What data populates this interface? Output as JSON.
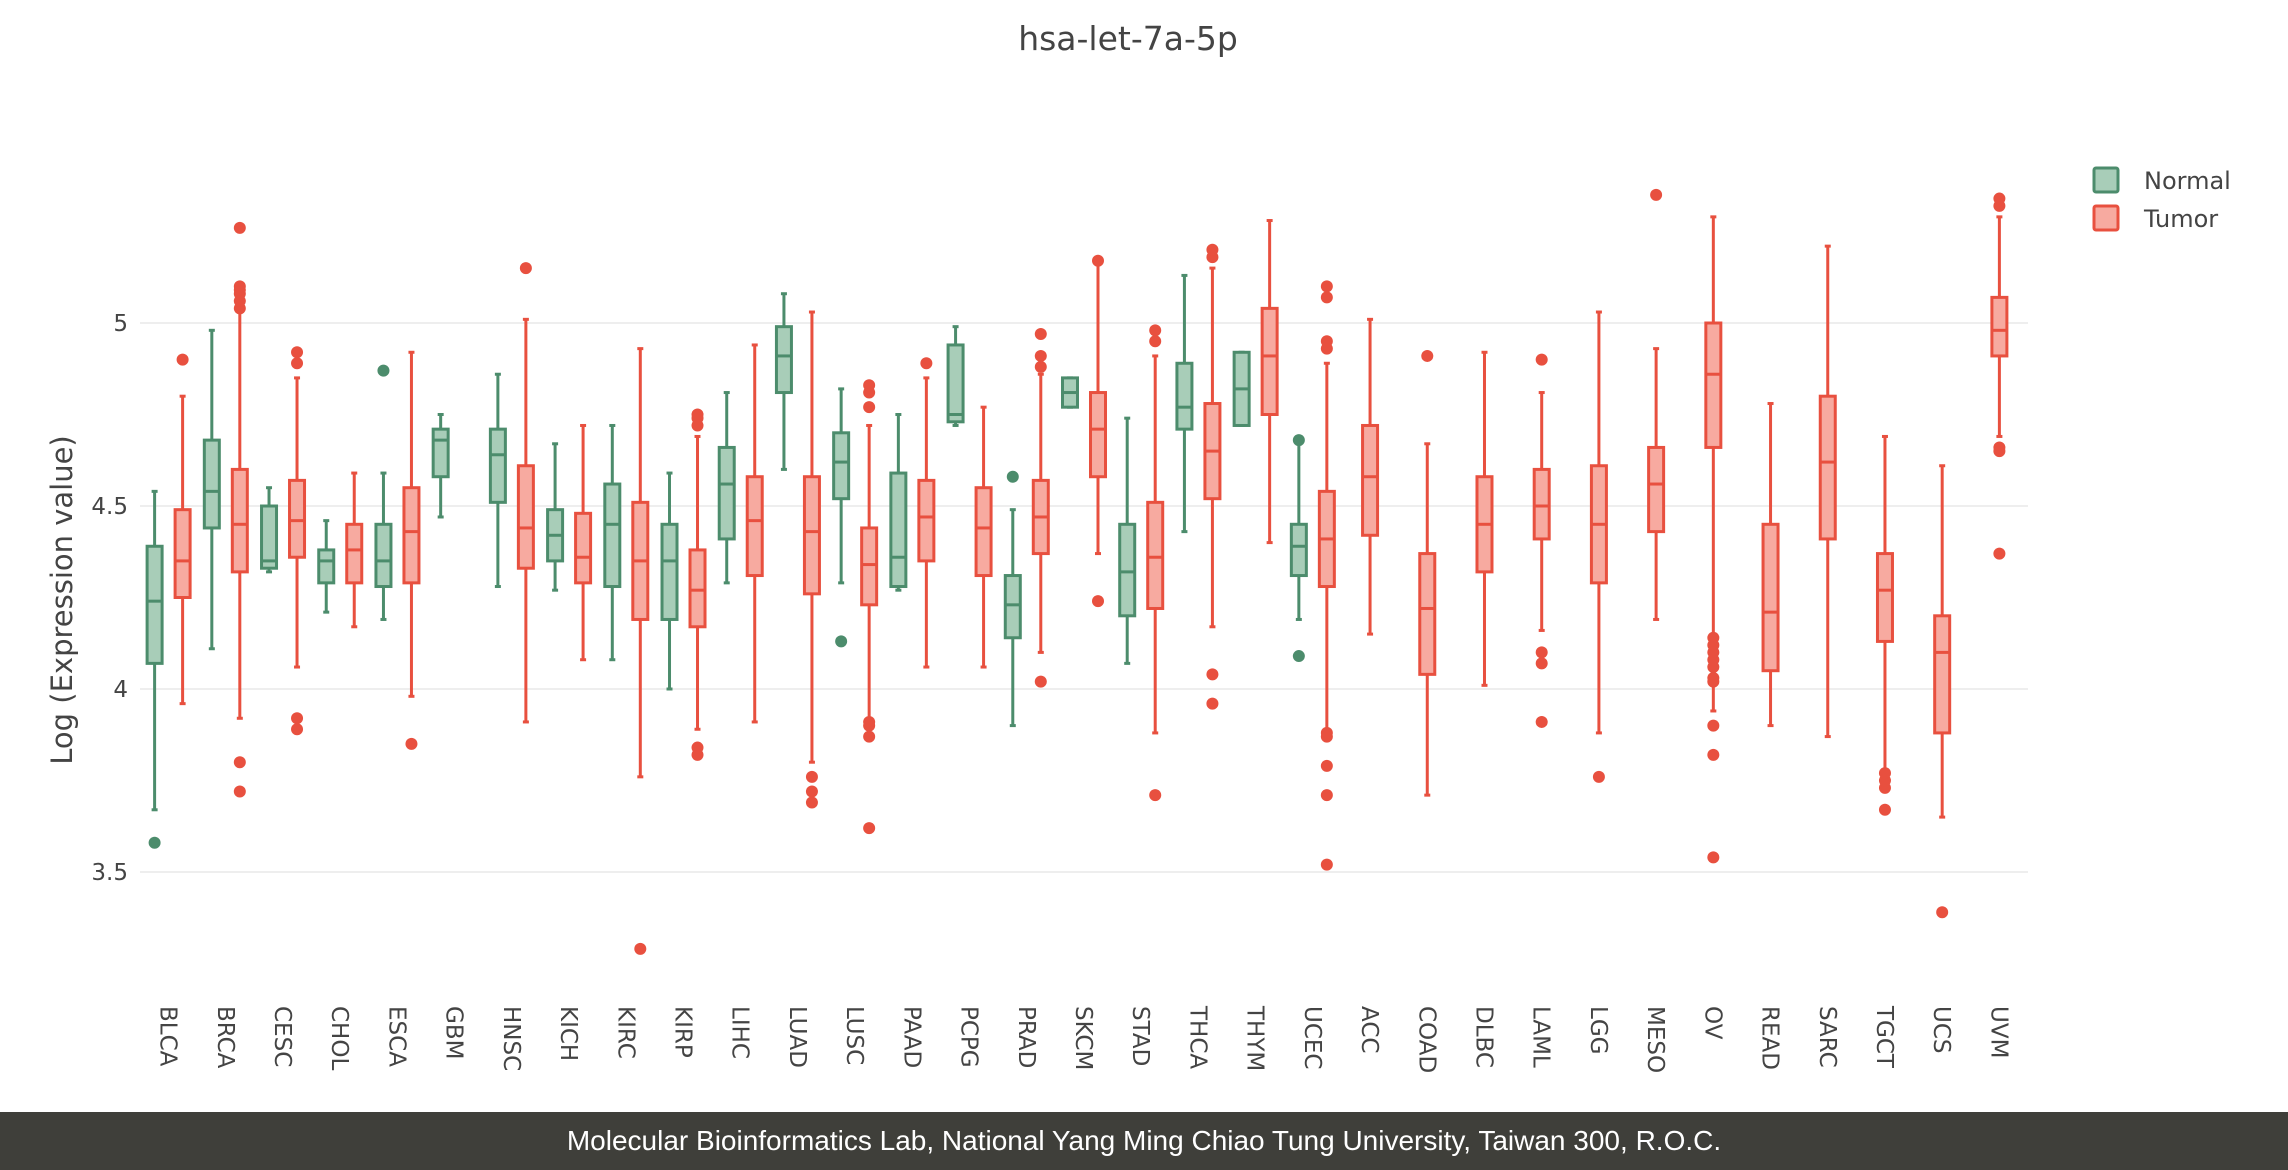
{
  "chart_data": {
    "type": "box",
    "title": "hsa-let-7a-5p",
    "ylabel": "Log (Expression value)",
    "xlabel": "",
    "ylim": [
      3.22,
      5.72
    ],
    "yticks": [
      3.5,
      4,
      4.5,
      5
    ],
    "ytick_labels": [
      "3.5",
      "4",
      "4.5",
      "5"
    ],
    "grid": "horizontal",
    "legend_position": "top-right",
    "categories": [
      "BLCA",
      "BRCA",
      "CESC",
      "CHOL",
      "ESCA",
      "GBM",
      "HNSC",
      "KICH",
      "KIRC",
      "KIRP",
      "LIHC",
      "LUAD",
      "LUSC",
      "PAAD",
      "PCPG",
      "PRAD",
      "SKCM",
      "STAD",
      "THCA",
      "THYM",
      "UCEC",
      "ACC",
      "COAD",
      "DLBC",
      "LAML",
      "LGG",
      "MESO",
      "OV",
      "READ",
      "SARC",
      "TGCT",
      "UCS",
      "UVM"
    ],
    "series": [
      {
        "name": "Normal",
        "color": "#4c8c6c",
        "fill": "#a8cdb8",
        "boxes": [
          {
            "category": "BLCA",
            "min": 3.67,
            "q1": 4.07,
            "median": 4.24,
            "q3": 4.39,
            "max": 4.54,
            "outliers": [
              3.58
            ]
          },
          {
            "category": "BRCA",
            "min": 4.11,
            "q1": 4.44,
            "median": 4.54,
            "q3": 4.68,
            "max": 4.98,
            "outliers": []
          },
          {
            "category": "CESC",
            "min": 4.32,
            "q1": 4.33,
            "median": 4.35,
            "q3": 4.5,
            "max": 4.55,
            "outliers": []
          },
          {
            "category": "CHOL",
            "min": 4.21,
            "q1": 4.29,
            "median": 4.35,
            "q3": 4.38,
            "max": 4.46,
            "outliers": []
          },
          {
            "category": "ESCA",
            "min": 4.19,
            "q1": 4.28,
            "median": 4.35,
            "q3": 4.45,
            "max": 4.59,
            "outliers": [
              4.87
            ]
          },
          {
            "category": "GBM",
            "min": 4.47,
            "q1": 4.58,
            "median": 4.68,
            "q3": 4.71,
            "max": 4.75,
            "outliers": []
          },
          {
            "category": "HNSC",
            "min": 4.28,
            "q1": 4.51,
            "median": 4.64,
            "q3": 4.71,
            "max": 4.86,
            "outliers": []
          },
          {
            "category": "KICH",
            "min": 4.27,
            "q1": 4.35,
            "median": 4.42,
            "q3": 4.49,
            "max": 4.67,
            "outliers": []
          },
          {
            "category": "KIRC",
            "min": 4.08,
            "q1": 4.28,
            "median": 4.45,
            "q3": 4.56,
            "max": 4.72,
            "outliers": []
          },
          {
            "category": "KIRP",
            "min": 4.0,
            "q1": 4.19,
            "median": 4.35,
            "q3": 4.45,
            "max": 4.59,
            "outliers": []
          },
          {
            "category": "LIHC",
            "min": 4.29,
            "q1": 4.41,
            "median": 4.56,
            "q3": 4.66,
            "max": 4.81,
            "outliers": []
          },
          {
            "category": "LUAD",
            "min": 4.6,
            "q1": 4.81,
            "median": 4.91,
            "q3": 4.99,
            "max": 5.08,
            "outliers": []
          },
          {
            "category": "LUSC",
            "min": 4.29,
            "q1": 4.52,
            "median": 4.62,
            "q3": 4.7,
            "max": 4.82,
            "outliers": [
              4.13
            ]
          },
          {
            "category": "PAAD",
            "min": 4.27,
            "q1": 4.28,
            "median": 4.36,
            "q3": 4.59,
            "max": 4.75,
            "outliers": []
          },
          {
            "category": "PCPG",
            "min": 4.72,
            "q1": 4.73,
            "median": 4.75,
            "q3": 4.94,
            "max": 4.99,
            "outliers": []
          },
          {
            "category": "PRAD",
            "min": 3.9,
            "q1": 4.14,
            "median": 4.23,
            "q3": 4.31,
            "max": 4.49,
            "outliers": [
              4.58
            ]
          },
          {
            "category": "SKCM",
            "min": 4.77,
            "q1": 4.77,
            "median": 4.81,
            "q3": 4.85,
            "max": 4.85,
            "outliers": []
          },
          {
            "category": "STAD",
            "min": 4.07,
            "q1": 4.2,
            "median": 4.32,
            "q3": 4.45,
            "max": 4.74,
            "outliers": []
          },
          {
            "category": "THCA",
            "min": 4.43,
            "q1": 4.71,
            "median": 4.77,
            "q3": 4.89,
            "max": 5.13,
            "outliers": []
          },
          {
            "category": "THYM",
            "min": 4.72,
            "q1": 4.72,
            "median": 4.82,
            "q3": 4.92,
            "max": 4.92,
            "outliers": []
          },
          {
            "category": "UCEC",
            "min": 4.19,
            "q1": 4.31,
            "median": 4.39,
            "q3": 4.45,
            "max": 4.67,
            "outliers": [
              4.09,
              4.68
            ]
          }
        ]
      },
      {
        "name": "Tumor",
        "color": "#e8503f",
        "fill": "#f7aaa0",
        "boxes": [
          {
            "category": "BLCA",
            "min": 3.96,
            "q1": 4.25,
            "median": 4.35,
            "q3": 4.49,
            "max": 4.8,
            "outliers": [
              4.9
            ]
          },
          {
            "category": "BRCA",
            "min": 3.92,
            "q1": 4.32,
            "median": 4.45,
            "q3": 4.6,
            "max": 5.05,
            "outliers": [
              3.72,
              3.8,
              5.04,
              5.06,
              5.08,
              5.09,
              5.1,
              5.26
            ]
          },
          {
            "category": "CESC",
            "min": 4.06,
            "q1": 4.36,
            "median": 4.46,
            "q3": 4.57,
            "max": 4.85,
            "outliers": [
              3.89,
              3.92,
              4.89,
              4.92
            ]
          },
          {
            "category": "CHOL",
            "min": 4.17,
            "q1": 4.29,
            "median": 4.38,
            "q3": 4.45,
            "max": 4.59,
            "outliers": []
          },
          {
            "category": "ESCA",
            "min": 3.98,
            "q1": 4.29,
            "median": 4.43,
            "q3": 4.55,
            "max": 4.92,
            "outliers": [
              3.85
            ]
          },
          {
            "category": "HNSC",
            "min": 3.91,
            "q1": 4.33,
            "median": 4.44,
            "q3": 4.61,
            "max": 5.01,
            "outliers": [
              5.15
            ]
          },
          {
            "category": "KICH",
            "min": 4.08,
            "q1": 4.29,
            "median": 4.36,
            "q3": 4.48,
            "max": 4.72,
            "outliers": []
          },
          {
            "category": "KIRC",
            "min": 3.76,
            "q1": 4.19,
            "median": 4.35,
            "q3": 4.51,
            "max": 4.93,
            "outliers": [
              3.29
            ]
          },
          {
            "category": "KIRP",
            "min": 3.89,
            "q1": 4.17,
            "median": 4.27,
            "q3": 4.38,
            "max": 4.69,
            "outliers": [
              3.82,
              3.84,
              4.72,
              4.74,
              4.75
            ]
          },
          {
            "category": "LIHC",
            "min": 3.91,
            "q1": 4.31,
            "median": 4.46,
            "q3": 4.58,
            "max": 4.94,
            "outliers": []
          },
          {
            "category": "LUAD",
            "min": 3.8,
            "q1": 4.26,
            "median": 4.43,
            "q3": 4.58,
            "max": 5.03,
            "outliers": [
              3.69,
              3.72,
              3.76
            ]
          },
          {
            "category": "LUSC",
            "min": 3.92,
            "q1": 4.23,
            "median": 4.34,
            "q3": 4.44,
            "max": 4.72,
            "outliers": [
              3.62,
              3.87,
              3.9,
              3.91,
              4.77,
              4.81,
              4.83
            ]
          },
          {
            "category": "PAAD",
            "min": 4.06,
            "q1": 4.35,
            "median": 4.47,
            "q3": 4.57,
            "max": 4.85,
            "outliers": [
              4.89
            ]
          },
          {
            "category": "PCPG",
            "min": 4.06,
            "q1": 4.31,
            "median": 4.44,
            "q3": 4.55,
            "max": 4.77,
            "outliers": []
          },
          {
            "category": "PRAD",
            "min": 4.1,
            "q1": 4.37,
            "median": 4.47,
            "q3": 4.57,
            "max": 4.86,
            "outliers": [
              4.02,
              4.88,
              4.91,
              4.97
            ]
          },
          {
            "category": "SKCM",
            "min": 4.37,
            "q1": 4.58,
            "median": 4.71,
            "q3": 4.81,
            "max": 5.16,
            "outliers": [
              4.24,
              5.17
            ]
          },
          {
            "category": "STAD",
            "min": 3.88,
            "q1": 4.22,
            "median": 4.36,
            "q3": 4.51,
            "max": 4.91,
            "outliers": [
              3.71,
              4.95,
              4.98
            ]
          },
          {
            "category": "THCA",
            "min": 4.17,
            "q1": 4.52,
            "median": 4.65,
            "q3": 4.78,
            "max": 5.15,
            "outliers": [
              3.96,
              4.04,
              5.18,
              5.2
            ]
          },
          {
            "category": "THYM",
            "min": 4.4,
            "q1": 4.75,
            "median": 4.91,
            "q3": 5.04,
            "max": 5.28,
            "outliers": []
          },
          {
            "category": "UCEC",
            "min": 3.89,
            "q1": 4.28,
            "median": 4.41,
            "q3": 4.54,
            "max": 4.89,
            "outliers": [
              3.52,
              3.71,
              3.79,
              3.87,
              3.88,
              4.93,
              4.95,
              5.07,
              5.1
            ]
          },
          {
            "category": "ACC",
            "min": 4.15,
            "q1": 4.42,
            "median": 4.58,
            "q3": 4.72,
            "max": 5.01,
            "outliers": []
          },
          {
            "category": "COAD",
            "min": 3.71,
            "q1": 4.04,
            "median": 4.22,
            "q3": 4.37,
            "max": 4.67,
            "outliers": [
              4.91
            ]
          },
          {
            "category": "DLBC",
            "min": 4.01,
            "q1": 4.32,
            "median": 4.45,
            "q3": 4.58,
            "max": 4.92,
            "outliers": []
          },
          {
            "category": "LAML",
            "min": 4.16,
            "q1": 4.41,
            "median": 4.5,
            "q3": 4.6,
            "max": 4.81,
            "outliers": [
              3.91,
              4.07,
              4.1,
              4.9
            ]
          },
          {
            "category": "LGG",
            "min": 3.88,
            "q1": 4.29,
            "median": 4.45,
            "q3": 4.61,
            "max": 5.03,
            "outliers": [
              3.76
            ]
          },
          {
            "category": "MESO",
            "min": 4.19,
            "q1": 4.43,
            "median": 4.56,
            "q3": 4.66,
            "max": 4.93,
            "outliers": [
              5.35
            ]
          },
          {
            "category": "OV",
            "min": 3.94,
            "q1": 4.66,
            "median": 4.86,
            "q3": 5.0,
            "max": 5.29,
            "outliers": [
              3.54,
              3.82,
              3.9,
              4.02,
              4.03,
              4.06,
              4.08,
              4.1,
              4.12,
              4.14
            ]
          },
          {
            "category": "READ",
            "min": 3.9,
            "q1": 4.05,
            "median": 4.21,
            "q3": 4.45,
            "max": 4.78,
            "outliers": []
          },
          {
            "category": "SARC",
            "min": 3.87,
            "q1": 4.41,
            "median": 4.62,
            "q3": 4.8,
            "max": 5.21,
            "outliers": []
          },
          {
            "category": "TGCT",
            "min": 3.78,
            "q1": 4.13,
            "median": 4.27,
            "q3": 4.37,
            "max": 4.69,
            "outliers": [
              3.67,
              3.73,
              3.75,
              3.77
            ]
          },
          {
            "category": "UCS",
            "min": 3.65,
            "q1": 3.88,
            "median": 4.1,
            "q3": 4.2,
            "max": 4.61,
            "outliers": [
              3.39
            ]
          },
          {
            "category": "UVM",
            "min": 4.69,
            "q1": 4.91,
            "median": 4.98,
            "q3": 5.07,
            "max": 5.29,
            "outliers": [
              4.37,
              4.65,
              4.66,
              5.32,
              5.34
            ]
          }
        ]
      }
    ]
  },
  "footer": {
    "text": "Molecular Bioinformatics Lab, National Yang Ming Chiao Tung University, Taiwan 300, R.O.C."
  }
}
